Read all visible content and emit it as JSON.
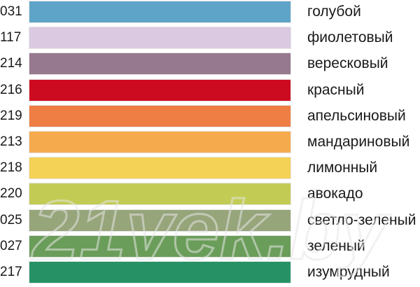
{
  "swatches": [
    {
      "code": "031",
      "name": "голубой",
      "color": "#5ea4c9"
    },
    {
      "code": "117",
      "name": "фиолетовый",
      "color": "#dac9e0"
    },
    {
      "code": "214",
      "name": "вересковый",
      "color": "#97798f"
    },
    {
      "code": "216",
      "name": "красный",
      "color": "#cc0a20"
    },
    {
      "code": "219",
      "name": "апельсиновый",
      "color": "#ef7e45"
    },
    {
      "code": "213",
      "name": "мандариновый",
      "color": "#f5ab4d"
    },
    {
      "code": "218",
      "name": "лимонный",
      "color": "#f3d256"
    },
    {
      "code": "220",
      "name": "авокадо",
      "color": "#c2cc55"
    },
    {
      "code": "025",
      "name": "светло-зеленый",
      "color": "#96a57a"
    },
    {
      "code": "027",
      "name": "зеленый",
      "color": "#6a9d59"
    },
    {
      "code": "217",
      "name": "изумрудный",
      "color": "#279166"
    }
  ],
  "watermark": {
    "text": "21vek.by",
    "color": "#e6e6e6"
  }
}
